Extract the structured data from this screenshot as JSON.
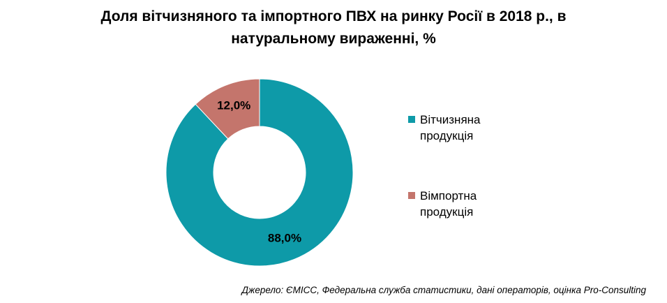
{
  "chart_data": {
    "type": "pie",
    "donut": true,
    "title": "Доля вітчизняного та імпортного ПВХ на ринку Росії в 2018 р., в натуральному вираженні, %",
    "title_lines": [
      "Доля вітчизняного та імпортного ПВХ на ринку Росії в 2018 р., в",
      "натуральному вираженні, %"
    ],
    "categories": [
      "Вітчизняна продукція",
      "Вімпортна продукція"
    ],
    "values": [
      88.0,
      12.0
    ],
    "data_labels": [
      "88,0%",
      "12,0%"
    ],
    "colors": [
      "#0e9aa8",
      "#c4756c"
    ],
    "legend_position": "right"
  },
  "legend": {
    "items": [
      {
        "label": "Вітчизняна продукція",
        "color": "#0e9aa8"
      },
      {
        "label": "Вімпортна продукція",
        "color": "#c4756c"
      }
    ]
  },
  "source": "Джерело: ЄМІСС, Федеральна служба статистики, дані операторів, оцінка Pro-Consulting"
}
